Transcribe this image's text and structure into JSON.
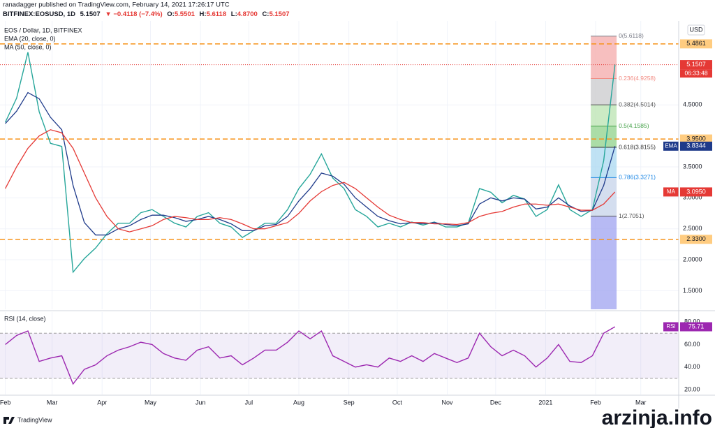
{
  "header": {
    "published": "ranadagger published on TradingView.com, February 14, 2021 17:26:17 UTC",
    "symbol": "BITFINEX:EOSUSD, 1D",
    "last": "5.1507",
    "change": "▼ −0.4118 (−7.4%)",
    "ohlc": [
      {
        "label": "O:",
        "value": "5.5501"
      },
      {
        "label": "H:",
        "value": "5.6118"
      },
      {
        "label": "L:",
        "value": "4.8700"
      },
      {
        "label": "C:",
        "value": "5.1507"
      }
    ]
  },
  "footer": {
    "brand": "TradingView",
    "watermark": "arzinja.info"
  },
  "chart_data": [
    {
      "type": "line",
      "title": "EOS / Dollar, 1D, BITFINEX",
      "unit": "USD",
      "countdown": "06:33:48",
      "grid": true,
      "x": [
        0,
        7,
        14,
        21,
        28,
        35,
        42,
        49,
        56,
        63,
        70,
        77,
        84,
        91,
        98,
        105,
        112,
        119,
        126,
        133,
        140,
        147,
        154,
        161,
        168,
        175,
        182,
        189,
        196,
        203,
        210,
        217,
        224,
        231,
        238,
        245,
        252,
        259,
        266,
        273,
        280,
        287,
        294,
        301,
        308,
        315,
        322,
        329,
        336,
        343,
        350,
        357,
        364,
        371,
        378
      ],
      "xlim": [
        -2,
        417.5
      ],
      "xticks": [
        {
          "value": 0,
          "label": "Feb"
        },
        {
          "value": 29,
          "label": "Mar"
        },
        {
          "value": 60,
          "label": "Apr"
        },
        {
          "value": 90,
          "label": "May"
        },
        {
          "value": 121,
          "label": "Jun"
        },
        {
          "value": 151,
          "label": "Jul"
        },
        {
          "value": 182,
          "label": "Aug"
        },
        {
          "value": 213,
          "label": "Sep"
        },
        {
          "value": 243,
          "label": "Oct"
        },
        {
          "value": 274,
          "label": "Nov"
        },
        {
          "value": 304,
          "label": "Dec"
        },
        {
          "value": 335,
          "label": "2021"
        },
        {
          "value": 366,
          "label": "Feb"
        },
        {
          "value": 394,
          "label": "Mar"
        }
      ],
      "ylim": [
        1.2,
        5.8
      ],
      "yticks": [
        {
          "value": 1.5,
          "label": "1.5000"
        },
        {
          "value": 2.0,
          "label": "2.0000"
        },
        {
          "value": 2.5,
          "label": "2.5000"
        },
        {
          "value": 3.0,
          "label": "3.0000"
        },
        {
          "value": 3.5,
          "label": "3.5000"
        },
        {
          "value": 4.5,
          "label": "4.5000"
        }
      ],
      "series": [
        {
          "color": "#26a69a",
          "last_label": "5.1507",
          "values": [
            4.22,
            4.61,
            5.35,
            4.39,
            3.88,
            3.83,
            1.8,
            2.02,
            2.19,
            2.42,
            2.59,
            2.59,
            2.76,
            2.81,
            2.7,
            2.59,
            2.53,
            2.7,
            2.76,
            2.59,
            2.53,
            2.36,
            2.47,
            2.59,
            2.59,
            2.81,
            3.15,
            3.38,
            3.71,
            3.32,
            3.15,
            2.81,
            2.7,
            2.53,
            2.59,
            2.53,
            2.61,
            2.56,
            2.61,
            2.53,
            2.53,
            2.59,
            3.15,
            3.09,
            2.92,
            3.04,
            2.98,
            2.7,
            2.81,
            3.21,
            2.81,
            2.7,
            2.81,
            3.6,
            5.1507
          ]
        },
        {
          "name": "EMA (20, close, 0)",
          "tag": "EMA",
          "color": "#1e3a8a",
          "last_label": "3.8344",
          "values": [
            4.2,
            4.4,
            4.7,
            4.6,
            4.3,
            4.1,
            3.2,
            2.6,
            2.4,
            2.4,
            2.5,
            2.55,
            2.65,
            2.72,
            2.72,
            2.68,
            2.62,
            2.65,
            2.7,
            2.65,
            2.58,
            2.47,
            2.47,
            2.55,
            2.57,
            2.7,
            2.95,
            3.15,
            3.4,
            3.35,
            3.22,
            3.0,
            2.85,
            2.7,
            2.63,
            2.58,
            2.6,
            2.58,
            2.6,
            2.57,
            2.55,
            2.58,
            2.9,
            3.0,
            2.95,
            3.0,
            2.98,
            2.82,
            2.85,
            3.0,
            2.87,
            2.78,
            2.8,
            3.2,
            3.8344
          ]
        },
        {
          "name": "MA (50, close, 0)",
          "tag": "MA",
          "color": "#e53935",
          "last_label": "3.0950",
          "values": [
            3.15,
            3.5,
            3.8,
            4.0,
            4.1,
            4.05,
            3.8,
            3.4,
            3.0,
            2.7,
            2.5,
            2.45,
            2.5,
            2.55,
            2.65,
            2.7,
            2.68,
            2.65,
            2.65,
            2.68,
            2.65,
            2.58,
            2.5,
            2.5,
            2.55,
            2.6,
            2.75,
            2.95,
            3.1,
            3.2,
            3.25,
            3.15,
            3.0,
            2.85,
            2.72,
            2.65,
            2.6,
            2.6,
            2.58,
            2.58,
            2.57,
            2.6,
            2.7,
            2.75,
            2.78,
            2.85,
            2.9,
            2.9,
            2.88,
            2.9,
            2.85,
            2.8,
            2.8,
            2.9,
            3.095
          ]
        }
      ],
      "levels": [
        {
          "value": 5.4861,
          "label": "5.4861"
        },
        {
          "value": 3.95,
          "label": "3.9500"
        },
        {
          "value": 2.33,
          "label": "2.3300"
        }
      ],
      "level_color": "#f7931a",
      "fib_x": [
        363,
        379
      ],
      "fib": [
        {
          "value": 5.6118,
          "label": "0(5.6118)",
          "color": "#787b86",
          "zone_color": "#f4a9a9"
        },
        {
          "value": 4.9258,
          "label": "0.236(4.9258)",
          "color": "#f28b82",
          "zone_color": "#c9c9cc"
        },
        {
          "value": 4.5014,
          "label": "0.382(4.5014)",
          "color": "#555555",
          "zone_color": "#b9e3b0"
        },
        {
          "value": 4.1585,
          "label": "0.5(4.1585)",
          "color": "#43a047",
          "zone_color": "#8fd18a"
        },
        {
          "value": 3.8155,
          "label": "0.618(3.8155)",
          "color": "#333333",
          "zone_color": "#a9d8f0"
        },
        {
          "value": 3.3271,
          "label": "0.786(3.3271)",
          "color": "#1e88e5",
          "zone_color": "#c5d3ea"
        },
        {
          "value": 2.7051,
          "label": "1(2.7051)",
          "color": "#555555",
          "zone_color": "#9fa3f0"
        }
      ]
    },
    {
      "type": "line",
      "title": "RSI (14, close)",
      "tag": "RSI",
      "ylim": [
        15.7,
        88.7
      ],
      "yticks": [
        {
          "value": 20,
          "label": "20.00"
        },
        {
          "value": 40,
          "label": "40.00"
        },
        {
          "value": 60,
          "label": "60.00"
        },
        {
          "value": 80,
          "label": "80.00"
        }
      ],
      "band": [
        30,
        70
      ],
      "series": [
        {
          "color": "#9c27b0",
          "values": [
            60,
            68,
            72,
            45,
            48,
            50,
            25,
            38,
            42,
            50,
            55,
            58,
            62,
            60,
            52,
            48,
            46,
            55,
            58,
            48,
            50,
            42,
            48,
            55,
            55,
            62,
            72,
            65,
            72,
            50,
            45,
            40,
            42,
            40,
            48,
            45,
            50,
            45,
            52,
            48,
            44,
            48,
            70,
            58,
            50,
            55,
            50,
            40,
            48,
            60,
            45,
            44,
            50,
            70,
            75.71
          ]
        }
      ]
    }
  ]
}
